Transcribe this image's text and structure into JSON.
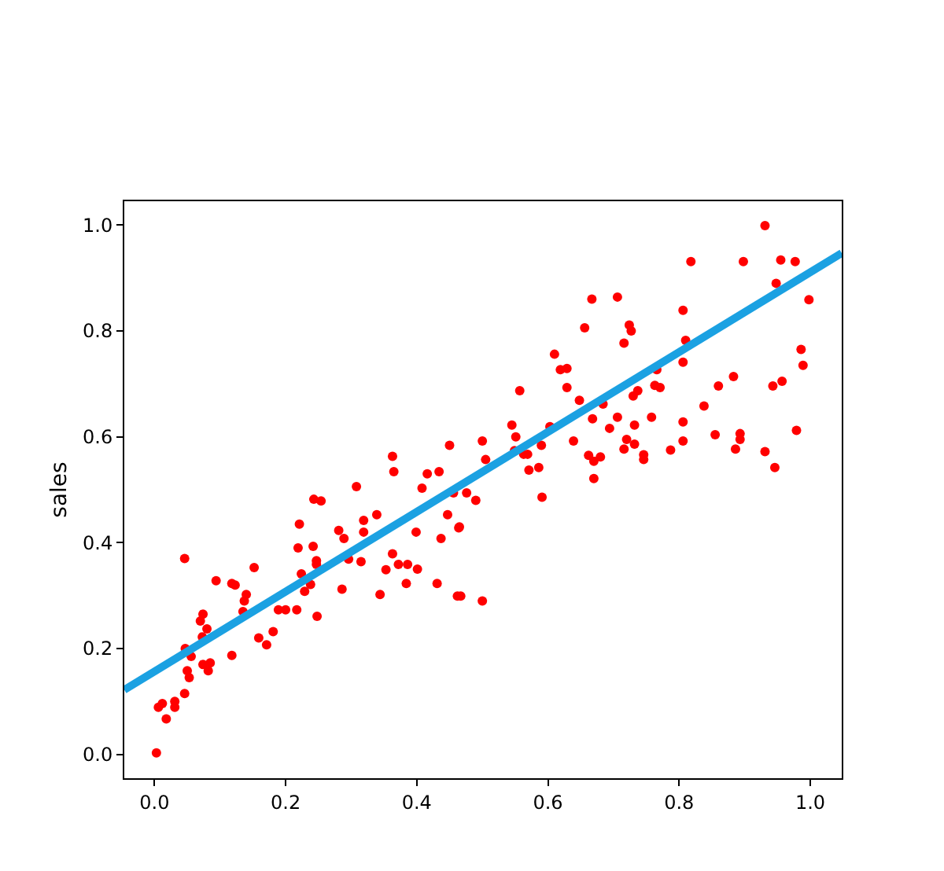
{
  "chart_data": {
    "type": "scatter",
    "ylabel": "sales",
    "xlim": [
      -0.046,
      1.048
    ],
    "ylim": [
      -0.045,
      1.045
    ],
    "xticks": [
      {
        "value": 0,
        "label": "0.0"
      },
      0.2,
      0.4,
      0.6,
      0.8,
      {
        "value": 1,
        "label": "1.0"
      }
    ],
    "yticks": [
      {
        "value": 0,
        "label": "0.0"
      },
      0.2,
      0.4,
      0.6,
      0.8,
      {
        "value": 1,
        "label": "1.0"
      }
    ],
    "series": [
      {
        "color": "#ff0000",
        "marker": "circle",
        "x": [
          0.003,
          0.006,
          0.012,
          0.018,
          0.031,
          0.031,
          0.046,
          0.046,
          0.047,
          0.05,
          0.053,
          0.056,
          0.07,
          0.074,
          0.073,
          0.074,
          0.08,
          0.082,
          0.085,
          0.094,
          0.118,
          0.123,
          0.118,
          0.135,
          0.137,
          0.14,
          0.152,
          0.159,
          0.171,
          0.181,
          0.189,
          0.2,
          0.217,
          0.219,
          0.221,
          0.224,
          0.229,
          0.238,
          0.242,
          0.243,
          0.247,
          0.247,
          0.248,
          0.254,
          0.281,
          0.286,
          0.289,
          0.296,
          0.308,
          0.315,
          0.319,
          0.319,
          0.339,
          0.344,
          0.353,
          0.363,
          0.365,
          0.363,
          0.372,
          0.384,
          0.386,
          0.399,
          0.401,
          0.408,
          0.416,
          0.431,
          0.434,
          0.437,
          0.447,
          0.45,
          0.464,
          0.462,
          0.467,
          0.456,
          0.476,
          0.465,
          0.49,
          0.5,
          0.5,
          0.505,
          0.545,
          0.551,
          0.549,
          0.557,
          0.563,
          0.569,
          0.571,
          0.586,
          0.591,
          0.59,
          0.603,
          0.61,
          0.619,
          0.629,
          0.629,
          0.639,
          0.648,
          0.656,
          0.662,
          0.667,
          0.668,
          0.67,
          0.67,
          0.68,
          0.684,
          0.694,
          0.706,
          0.706,
          0.716,
          0.72,
          0.716,
          0.724,
          0.727,
          0.73,
          0.732,
          0.737,
          0.732,
          0.746,
          0.746,
          0.758,
          0.763,
          0.771,
          0.766,
          0.787,
          0.806,
          0.81,
          0.806,
          0.806,
          0.806,
          0.818,
          0.838,
          0.855,
          0.86,
          0.883,
          0.886,
          0.893,
          0.893,
          0.898,
          0.931,
          0.931,
          0.943,
          0.946,
          0.948,
          0.955,
          0.957,
          0.977,
          0.979,
          0.986,
          0.989,
          0.998
        ],
        "values": [
          0.003,
          0.089,
          0.096,
          0.067,
          0.1,
          0.089,
          0.37,
          0.115,
          0.2,
          0.158,
          0.145,
          0.185,
          0.252,
          0.265,
          0.222,
          0.17,
          0.237,
          0.158,
          0.173,
          0.328,
          0.323,
          0.32,
          0.187,
          0.27,
          0.29,
          0.302,
          0.353,
          0.22,
          0.207,
          0.232,
          0.273,
          0.273,
          0.273,
          0.39,
          0.435,
          0.341,
          0.308,
          0.321,
          0.393,
          0.482,
          0.366,
          0.359,
          0.261,
          0.479,
          0.423,
          0.312,
          0.408,
          0.369,
          0.506,
          0.364,
          0.442,
          0.42,
          0.453,
          0.302,
          0.349,
          0.563,
          0.534,
          0.379,
          0.359,
          0.323,
          0.359,
          0.42,
          0.35,
          0.503,
          0.53,
          0.323,
          0.534,
          0.408,
          0.453,
          0.584,
          0.428,
          0.299,
          0.299,
          0.494,
          0.494,
          0.43,
          0.48,
          0.592,
          0.29,
          0.557,
          0.622,
          0.6,
          0.574,
          0.687,
          0.567,
          0.567,
          0.537,
          0.542,
          0.486,
          0.584,
          0.619,
          0.756,
          0.727,
          0.729,
          0.693,
          0.592,
          0.669,
          0.806,
          0.565,
          0.86,
          0.634,
          0.554,
          0.521,
          0.562,
          0.662,
          0.616,
          0.864,
          0.637,
          0.777,
          0.595,
          0.577,
          0.811,
          0.8,
          0.677,
          0.622,
          0.687,
          0.586,
          0.566,
          0.557,
          0.637,
          0.697,
          0.693,
          0.727,
          0.575,
          0.839,
          0.782,
          0.741,
          0.628,
          0.592,
          0.931,
          0.658,
          0.604,
          0.696,
          0.714,
          0.577,
          0.606,
          0.595,
          0.931,
          0.999,
          0.572,
          0.696,
          0.542,
          0.89,
          0.934,
          0.705,
          0.931,
          0.612,
          0.765,
          0.735,
          0.859
        ]
      },
      {
        "type": "line",
        "color": "#1ba1e2",
        "marker": "none",
        "line_style": "solid",
        "x": [
          -0.046,
          1.048
        ],
        "values": [
          0.122,
          0.947
        ]
      }
    ]
  }
}
